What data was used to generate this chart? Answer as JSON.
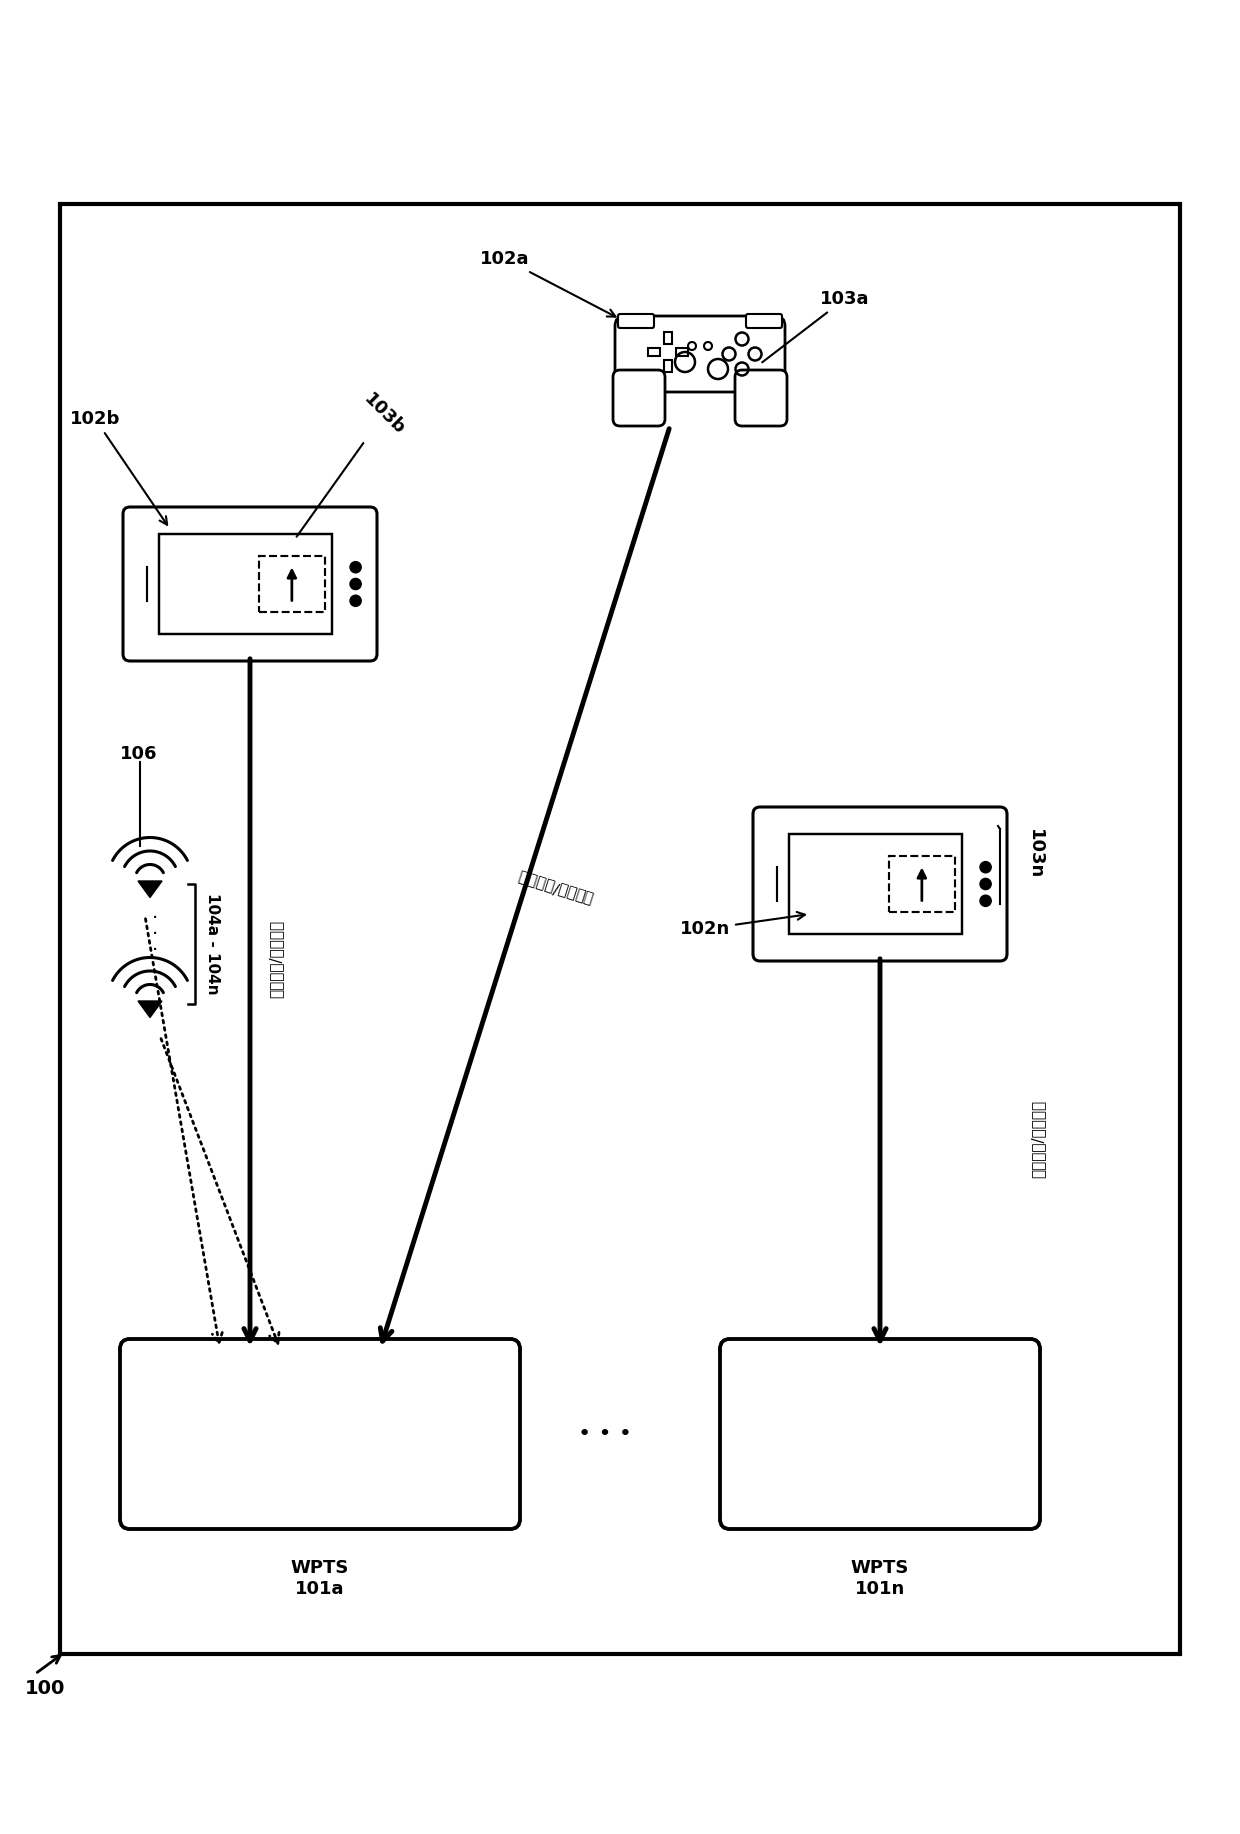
{
  "bg_color": "#ffffff",
  "fig_width": 12.4,
  "fig_height": 18.34,
  "dpi": 100,
  "xlim": [
    0,
    12.4
  ],
  "ylim": [
    0,
    18.34
  ],
  "border": [
    0.6,
    1.8,
    11.2,
    14.5
  ],
  "labels": {
    "100": "100",
    "101a": "WPTS\n101a",
    "101n": "WPTS\n101n",
    "102a": "102a",
    "102b": "102b",
    "102n": "102n",
    "103a": "103a",
    "103b": "103b",
    "103n": "103n",
    "104a_104n": "104a - 104n",
    "106": "106"
  },
  "chinese": "无线电力/数据链路",
  "wpts_a": [
    3.2,
    4.0
  ],
  "wpts_n": [
    8.8,
    4.0
  ],
  "phone_b": [
    2.5,
    12.5
  ],
  "phone_n": [
    8.8,
    9.5
  ],
  "gamepad": [
    7.0,
    14.8
  ],
  "wifi1": [
    1.5,
    9.5
  ],
  "wifi2": [
    1.5,
    8.3
  ]
}
